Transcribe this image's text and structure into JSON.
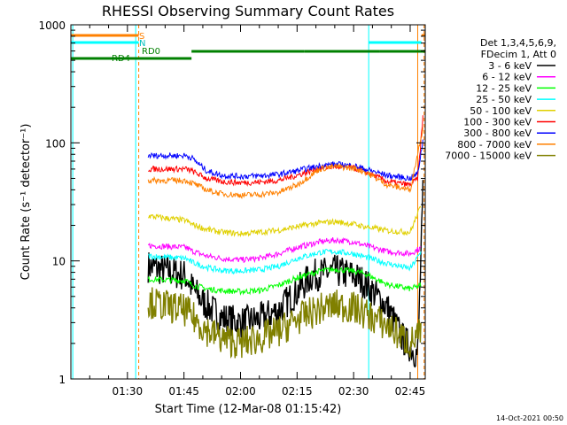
{
  "chart_data": {
    "type": "line",
    "title": "RHESSI Observing Summary Count Rates",
    "xlabel": "Start Time (12-Mar-08 01:15:42)",
    "ylabel": "Count Rate (s⁻¹ detector⁻¹)",
    "yscale": "log",
    "ylim": [
      1,
      1000
    ],
    "xlim_minutes": [
      0,
      94
    ],
    "x_ticks": [
      {
        "t": 15,
        "label": "01:30"
      },
      {
        "t": 30,
        "label": "01:45"
      },
      {
        "t": 45,
        "label": "02:00"
      },
      {
        "t": 60,
        "label": "02:15"
      },
      {
        "t": 75,
        "label": "02:30"
      },
      {
        "t": 90,
        "label": "02:45"
      }
    ],
    "y_ticks": [
      {
        "v": 1,
        "label": "1"
      },
      {
        "v": 10,
        "label": "10"
      },
      {
        "v": 100,
        "label": "100"
      },
      {
        "v": 1000,
        "label": "1000"
      }
    ],
    "legend_header": [
      "Det 1,3,4,5,6,9,",
      "FDecim 1, Att 0"
    ],
    "legend_position": "right",
    "grid": false,
    "annotations": {
      "S": "S",
      "N": "N",
      "RD0": "RD0",
      "RD4": "RD4"
    },
    "footer_date": "14-Oct-2021 00:50",
    "shade_intervals": [
      [
        17,
        20
      ],
      [
        79,
        92
      ]
    ],
    "series": [
      {
        "name": "3 - 6 keV",
        "color": "#000000",
        "points": [
          [
            20.5,
            9
          ],
          [
            30.5,
            7.5
          ],
          [
            32,
            6
          ],
          [
            35,
            4.5
          ],
          [
            40,
            3.3
          ],
          [
            45,
            3
          ],
          [
            50,
            3.2
          ],
          [
            55,
            3.8
          ],
          [
            60,
            5.5
          ],
          [
            64,
            7.5
          ],
          [
            70,
            8.2
          ],
          [
            75,
            7.5
          ],
          [
            78,
            6.5
          ],
          [
            84,
            4
          ],
          [
            88,
            2.2
          ],
          [
            92,
            1.6
          ],
          [
            93.5,
            45
          ]
        ]
      },
      {
        "name": "6 - 12 keV",
        "color": "#ff00ff",
        "points": [
          [
            20.5,
            13.5
          ],
          [
            30.5,
            13
          ],
          [
            32,
            12.2
          ],
          [
            36,
            11
          ],
          [
            40,
            10.5
          ],
          [
            45,
            10.2
          ],
          [
            50,
            10.5
          ],
          [
            55,
            11.5
          ],
          [
            60,
            13
          ],
          [
            66,
            14.5
          ],
          [
            70,
            15
          ],
          [
            75,
            14.5
          ],
          [
            78,
            13.5
          ],
          [
            84,
            12
          ],
          [
            90,
            11.5
          ],
          [
            93,
            13
          ]
        ]
      },
      {
        "name": "12 - 25 keV",
        "color": "#00ff00",
        "points": [
          [
            20.5,
            7
          ],
          [
            30.5,
            6.8
          ],
          [
            32,
            6.3
          ],
          [
            36,
            5.8
          ],
          [
            40,
            5.6
          ],
          [
            45,
            5.5
          ],
          [
            50,
            5.6
          ],
          [
            55,
            6.2
          ],
          [
            60,
            7.2
          ],
          [
            66,
            8.2
          ],
          [
            70,
            8.5
          ],
          [
            75,
            8.2
          ],
          [
            78,
            7.8
          ],
          [
            84,
            6.3
          ],
          [
            90,
            5.8
          ],
          [
            93,
            6.2
          ]
        ]
      },
      {
        "name": "25 - 50 keV",
        "color": "#00ffff",
        "points": [
          [
            20.5,
            11
          ],
          [
            30.5,
            10.5
          ],
          [
            32,
            9.8
          ],
          [
            36,
            8.8
          ],
          [
            40,
            8.3
          ],
          [
            45,
            8.2
          ],
          [
            50,
            8.4
          ],
          [
            55,
            9
          ],
          [
            60,
            10.5
          ],
          [
            66,
            11.8
          ],
          [
            70,
            12
          ],
          [
            75,
            11.5
          ],
          [
            78,
            10.8
          ],
          [
            84,
            9.5
          ],
          [
            90,
            8.6
          ],
          [
            93,
            12
          ]
        ]
      },
      {
        "name": "50 - 100 keV",
        "color": "#e0d000",
        "points": [
          [
            20.5,
            24
          ],
          [
            30.5,
            22
          ],
          [
            32,
            20.5
          ],
          [
            36,
            18.5
          ],
          [
            40,
            17.5
          ],
          [
            45,
            17
          ],
          [
            50,
            17.5
          ],
          [
            55,
            18.2
          ],
          [
            60,
            19.5
          ],
          [
            66,
            21
          ],
          [
            70,
            21.5
          ],
          [
            75,
            20.5
          ],
          [
            78,
            19.5
          ],
          [
            84,
            18
          ],
          [
            90,
            17.5
          ],
          [
            93,
            30
          ]
        ]
      },
      {
        "name": "100 - 300 keV",
        "color": "#ff0000",
        "points": [
          [
            20.5,
            60
          ],
          [
            30.5,
            60
          ],
          [
            32,
            58
          ],
          [
            36,
            50
          ],
          [
            40,
            47
          ],
          [
            45,
            46
          ],
          [
            50,
            46.5
          ],
          [
            55,
            48
          ],
          [
            60,
            53
          ],
          [
            66,
            61
          ],
          [
            70,
            63
          ],
          [
            75,
            61
          ],
          [
            78,
            57
          ],
          [
            84,
            47
          ],
          [
            90,
            44
          ],
          [
            92,
            50
          ],
          [
            93.5,
            180
          ]
        ]
      },
      {
        "name": "300 - 800 keV",
        "color": "#0000ff",
        "points": [
          [
            20.5,
            78
          ],
          [
            30.5,
            78
          ],
          [
            32,
            75
          ],
          [
            36,
            58
          ],
          [
            40,
            53
          ],
          [
            45,
            52
          ],
          [
            50,
            52.5
          ],
          [
            55,
            54
          ],
          [
            60,
            58
          ],
          [
            66,
            64
          ],
          [
            70,
            66
          ],
          [
            75,
            64
          ],
          [
            78,
            60
          ],
          [
            84,
            53
          ],
          [
            90,
            50
          ],
          [
            92,
            55
          ],
          [
            93.5,
            110
          ]
        ]
      },
      {
        "name": "800 - 7000 keV",
        "color": "#ff8000",
        "points": [
          [
            20.5,
            48
          ],
          [
            30.5,
            48
          ],
          [
            32,
            46
          ],
          [
            36,
            40
          ],
          [
            40,
            37
          ],
          [
            45,
            36
          ],
          [
            50,
            36.5
          ],
          [
            55,
            38
          ],
          [
            60,
            44
          ],
          [
            66,
            60
          ],
          [
            70,
            63
          ],
          [
            75,
            61
          ],
          [
            78,
            57
          ],
          [
            84,
            44
          ],
          [
            90,
            40
          ],
          [
            93.5,
            140
          ]
        ]
      },
      {
        "name": "7000 - 15000 keV",
        "color": "#808000",
        "points": [
          [
            20.5,
            4.5
          ],
          [
            30.5,
            3.8
          ],
          [
            32,
            3.4
          ],
          [
            36,
            2.6
          ],
          [
            40,
            2.2
          ],
          [
            45,
            2
          ],
          [
            50,
            2.2
          ],
          [
            55,
            2.5
          ],
          [
            60,
            3.2
          ],
          [
            66,
            3.9
          ],
          [
            70,
            4.2
          ],
          [
            75,
            4
          ],
          [
            78,
            3.6
          ],
          [
            84,
            2.8
          ],
          [
            90,
            2
          ],
          [
            93,
            2.5
          ]
        ]
      }
    ],
    "state_bars": [
      {
        "label": "S",
        "color": "#ff8000",
        "segments": [
          [
            0,
            18
          ],
          [
            93,
            94
          ]
        ],
        "level": 0
      },
      {
        "label": "N",
        "color": "#00ffff",
        "segments": [
          [
            0,
            18
          ],
          [
            79,
            93
          ]
        ],
        "level": 1
      },
      {
        "label": "RD0",
        "color": "#008000",
        "segments": [
          [
            32,
            62
          ],
          [
            62,
            82
          ],
          [
            82,
            94
          ]
        ],
        "level": 2
      },
      {
        "label": "RD4",
        "color": "#008000",
        "segments": [
          [
            0,
            32
          ]
        ],
        "level": 3
      }
    ],
    "vertical_markers": [
      {
        "t": 0.5,
        "color": "#00ffff",
        "style": "solid"
      },
      {
        "t": 17.2,
        "color": "#00ffff",
        "style": "solid"
      },
      {
        "t": 18,
        "color": "#ff8000",
        "style": "dashed"
      },
      {
        "t": 79,
        "color": "#00ffff",
        "style": "solid"
      },
      {
        "t": 92,
        "color": "#ff8000",
        "style": "solid"
      },
      {
        "t": 93.7,
        "color": "#ff8000",
        "style": "dashed"
      }
    ]
  }
}
